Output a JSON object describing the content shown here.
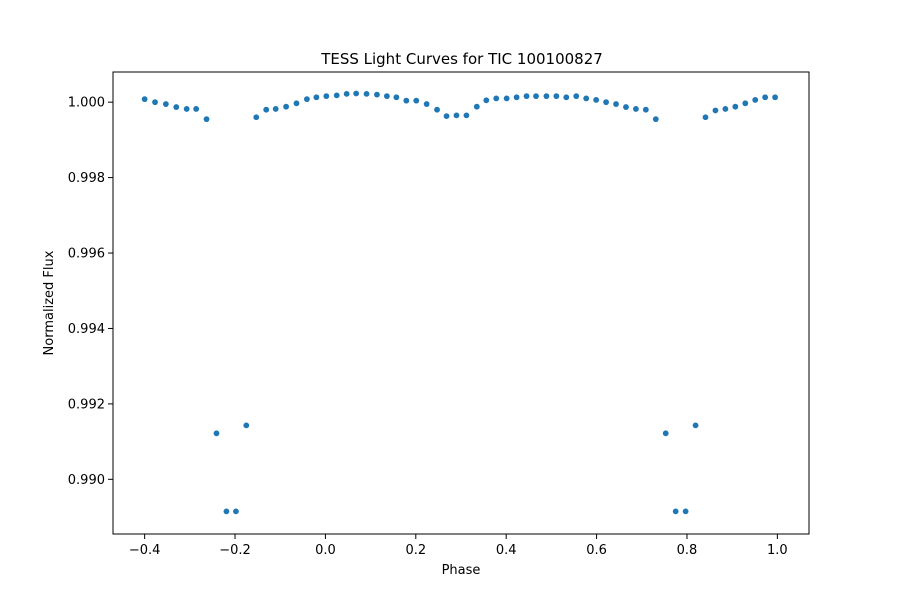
{
  "chart_data": {
    "type": "scatter",
    "title": "TESS Light Curves for TIC 100100827",
    "xlabel": "Phase",
    "ylabel": "Normalized Flux",
    "xlim": [
      -0.47,
      1.07
    ],
    "ylim": [
      0.98855,
      1.0008
    ],
    "xticks": [
      -0.4,
      -0.2,
      0.0,
      0.2,
      0.4,
      0.6,
      0.8,
      1.0
    ],
    "xtick_labels": [
      "−0.4",
      "−0.2",
      "0.0",
      "0.2",
      "0.4",
      "0.6",
      "0.8",
      "1.0"
    ],
    "yticks": [
      0.99,
      0.992,
      0.994,
      0.996,
      0.998,
      1.0
    ],
    "ytick_labels": [
      "0.990",
      "0.992",
      "0.994",
      "0.996",
      "0.998",
      "1.000"
    ],
    "grid": false,
    "marker_color": "#1f77b4",
    "series": [
      {
        "x": [
          -0.4,
          -0.377,
          -0.353,
          -0.33,
          -0.307,
          -0.286,
          -0.263,
          -0.241,
          -0.219,
          -0.198,
          -0.175,
          -0.153,
          -0.131,
          -0.11,
          -0.087,
          -0.064,
          -0.041,
          -0.02,
          0.002,
          0.025,
          0.047,
          0.068,
          0.091,
          0.114,
          0.136,
          0.157,
          0.179,
          0.201,
          0.224,
          0.247,
          0.268,
          0.29,
          0.312,
          0.335,
          0.356,
          0.378,
          0.401,
          0.423,
          0.445,
          0.466,
          0.489,
          0.511,
          0.533,
          0.555,
          0.577,
          0.599,
          0.621,
          0.643,
          0.665,
          0.687,
          0.709,
          0.731,
          0.753,
          0.775,
          0.797,
          0.819,
          0.841,
          0.863,
          0.885,
          0.907,
          0.929,
          0.951,
          0.973,
          0.995
        ],
        "y": [
          1.00008,
          1.0,
          0.99995,
          0.99987,
          0.99982,
          0.99982,
          0.99955,
          0.99122,
          0.98915,
          0.98915,
          0.99143,
          0.9996,
          0.9998,
          0.99982,
          0.99988,
          0.99997,
          1.00008,
          1.00013,
          1.00016,
          1.00018,
          1.00022,
          1.00023,
          1.00022,
          1.0002,
          1.00016,
          1.00013,
          1.00004,
          1.00004,
          0.99995,
          0.9998,
          0.99963,
          0.99965,
          0.99965,
          0.99988,
          1.00005,
          1.0001,
          1.0001,
          1.00013,
          1.00016,
          1.00016,
          1.00016,
          1.00016,
          1.00013,
          1.00016,
          1.0001,
          1.00006,
          1.0,
          0.99995,
          0.99987,
          0.99982,
          0.9998,
          0.99955,
          0.99122,
          0.98915,
          0.98915,
          0.99143,
          0.9996,
          0.99978,
          0.99982,
          0.99988,
          0.99997,
          1.00006,
          1.00013,
          1.00013
        ]
      }
    ]
  }
}
